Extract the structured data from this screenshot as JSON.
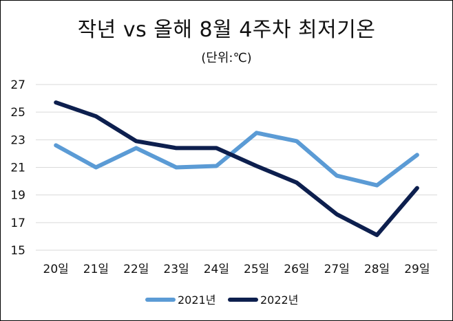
{
  "chart_data": {
    "type": "line",
    "title": "작년 vs 올해 8월 4주차 최저기온",
    "subtitle": "(단위:℃)",
    "categories": [
      "20일",
      "21일",
      "22일",
      "23일",
      "24일",
      "25일",
      "26일",
      "27일",
      "28일",
      "29일"
    ],
    "series": [
      {
        "name": "2021년",
        "color": "#5b9bd5",
        "values": [
          22.6,
          21.0,
          22.4,
          21.0,
          21.1,
          23.5,
          22.9,
          20.4,
          19.7,
          21.9
        ]
      },
      {
        "name": "2022년",
        "color": "#0d1f4e",
        "values": [
          25.7,
          24.7,
          22.9,
          22.4,
          22.4,
          21.1,
          19.9,
          17.6,
          16.1,
          19.5
        ]
      }
    ],
    "yticks": [
      15,
      17,
      19,
      21,
      23,
      25,
      27
    ],
    "ylim": [
      15,
      27
    ],
    "grid": true,
    "legend": "bottom"
  }
}
